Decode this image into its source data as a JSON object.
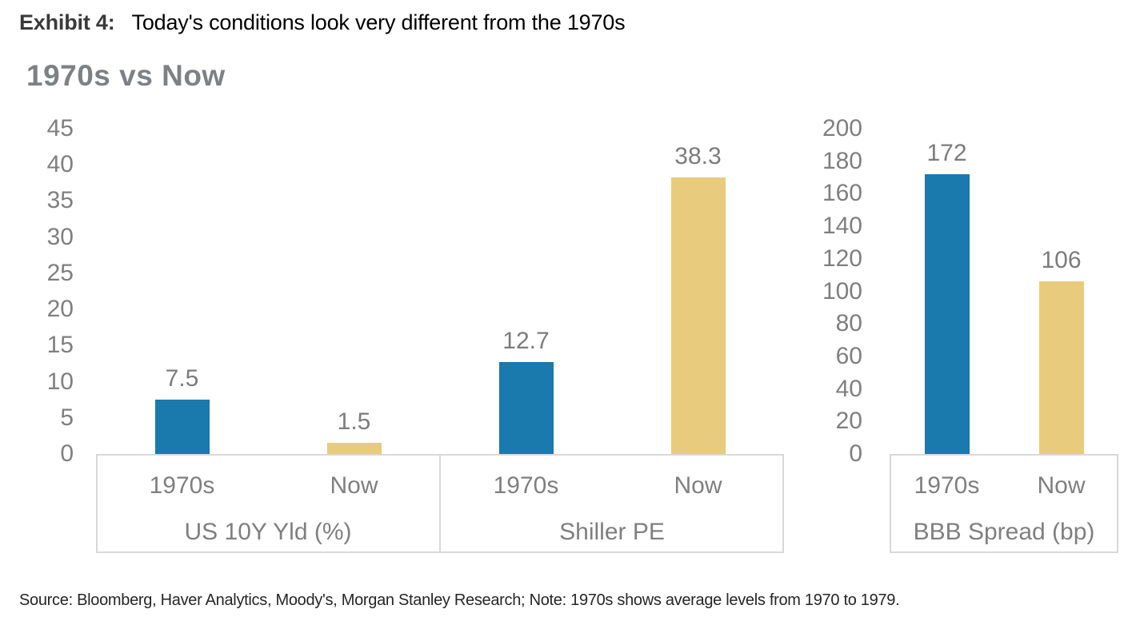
{
  "header": {
    "exhibit_label": "Exhibit 4:",
    "title": "Today's conditions look very different from the 1970s"
  },
  "chart_title": "1970s vs Now",
  "source_note": "Source: Bloomberg, Haver Analytics, Moody's, Morgan Stanley Research; Note: 1970s shows average levels from 1970 to 1979.",
  "colors": {
    "category_colors": {
      "1970s": "#1a79ad",
      "Now": "#e9cb7d"
    },
    "axis_text": "#7f7f7f",
    "box_border": "#d9d9d9",
    "title_gray": "#7e8184"
  },
  "chart_data": [
    {
      "type": "bar",
      "panel": "left",
      "ylim": [
        0,
        45
      ],
      "yticks": [
        0,
        5,
        10,
        15,
        20,
        25,
        30,
        35,
        40,
        45
      ],
      "grid": false,
      "groups": [
        {
          "label": "US 10Y Yld (%)",
          "categories": [
            "1970s",
            "Now"
          ],
          "values": [
            7.5,
            1.5
          ],
          "value_labels": [
            "7.5",
            "1.5"
          ]
        },
        {
          "label": "Shiller PE",
          "categories": [
            "1970s",
            "Now"
          ],
          "values": [
            12.7,
            38.3
          ],
          "value_labels": [
            "12.7",
            "38.3"
          ]
        }
      ]
    },
    {
      "type": "bar",
      "panel": "right",
      "ylim": [
        0,
        200
      ],
      "yticks": [
        0,
        20,
        40,
        60,
        80,
        100,
        120,
        140,
        160,
        180,
        200
      ],
      "grid": false,
      "groups": [
        {
          "label": "BBB Spread (bp)",
          "categories": [
            "1970s",
            "Now"
          ],
          "values": [
            172,
            106
          ],
          "value_labels": [
            "172",
            "106"
          ]
        }
      ]
    }
  ]
}
